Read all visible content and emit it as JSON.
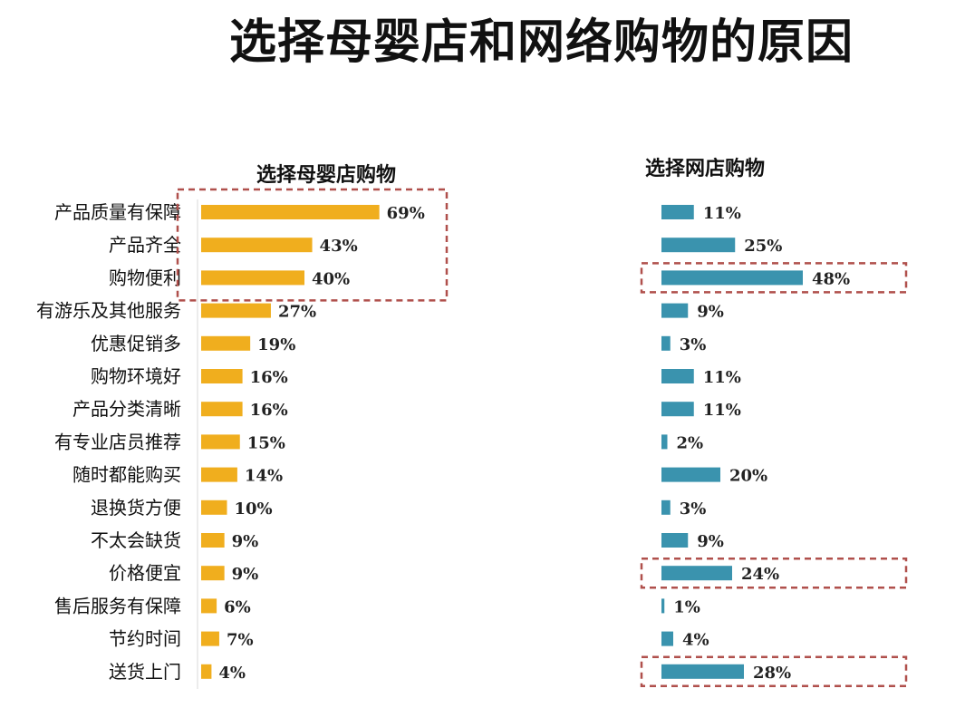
{
  "title": "选择母婴店和网络购物的原因",
  "chart_data": [
    {
      "type": "bar",
      "orientation": "horizontal",
      "title": "选择母婴店购物",
      "color": "#F0AE1E",
      "categories": [
        "产品质量有保障",
        "产品齐全",
        "购物便利",
        "有游乐及其他服务",
        "优惠促销多",
        "购物环境好",
        "产品分类清晰",
        "有专业店员推荐",
        "随时都能购买",
        "退换货方便",
        "不太会缺货",
        "价格便宜",
        "售后服务有保障",
        "节约时间",
        "送货上门"
      ],
      "values": [
        69,
        43,
        40,
        27,
        19,
        16,
        16,
        15,
        14,
        10,
        9,
        9,
        6,
        7,
        4
      ],
      "value_labels": [
        "69%",
        "43%",
        "40%",
        "27%",
        "19%",
        "16%",
        "16%",
        "15%",
        "14%",
        "10%",
        "9%",
        "9%",
        "6%",
        "7%",
        "4%"
      ],
      "highlight_groups": [
        [
          0,
          2
        ]
      ]
    },
    {
      "type": "bar",
      "orientation": "horizontal",
      "title": "选择网店购物",
      "color": "#3A93AE",
      "categories": [
        "产品质量有保障",
        "产品齐全",
        "购物便利",
        "有游乐及其他服务",
        "优惠促销多",
        "购物环境好",
        "产品分类清晰",
        "有专业店员推荐",
        "随时都能购买",
        "退换货方便",
        "不太会缺货",
        "价格便宜",
        "售后服务有保障",
        "节约时间",
        "送货上门"
      ],
      "values": [
        11,
        25,
        48,
        9,
        3,
        11,
        11,
        2,
        20,
        3,
        9,
        24,
        1,
        4,
        28
      ],
      "value_labels": [
        "11%",
        "25%",
        "48%",
        "9%",
        "3%",
        "11%",
        "11%",
        "2%",
        "20%",
        "3%",
        "9%",
        "24%",
        "1%",
        "4%",
        "28%"
      ],
      "highlight_groups": [
        [
          2,
          2
        ],
        [
          11,
          11
        ],
        [
          14,
          14
        ]
      ]
    }
  ]
}
